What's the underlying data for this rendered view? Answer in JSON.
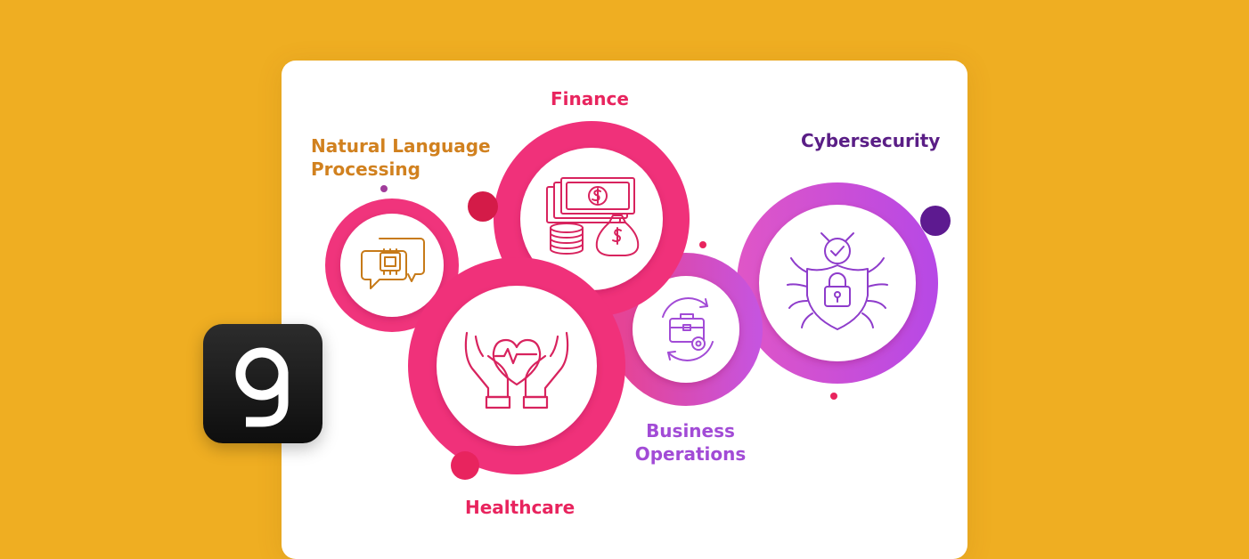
{
  "labels": {
    "nlp": "Natural Language\nProcessing",
    "finance": "Finance",
    "cybersecurity": "Cybersecurity",
    "business": "Business\nOperations",
    "healthcare": "Healthcare"
  },
  "logo": {
    "glyph": "g"
  },
  "colors": {
    "background": "#EFAE22",
    "pink": "#F0317A",
    "purple": "#C455E3",
    "nlp_label": "#D1811F",
    "cyber_label": "#5A1E86",
    "finance_icon": "#D8235E",
    "nlp_icon": "#C77A18",
    "health_icon": "#D8235E",
    "biz_icon": "#A24BD6",
    "cyber_icon": "#8E3CCB"
  },
  "icons": {
    "nlp": "chip-chat-icon",
    "finance": "money-coins-icon",
    "healthcare": "heart-hands-icon",
    "business": "briefcase-gear-icon",
    "cybersecurity": "bug-shield-lock-icon"
  }
}
